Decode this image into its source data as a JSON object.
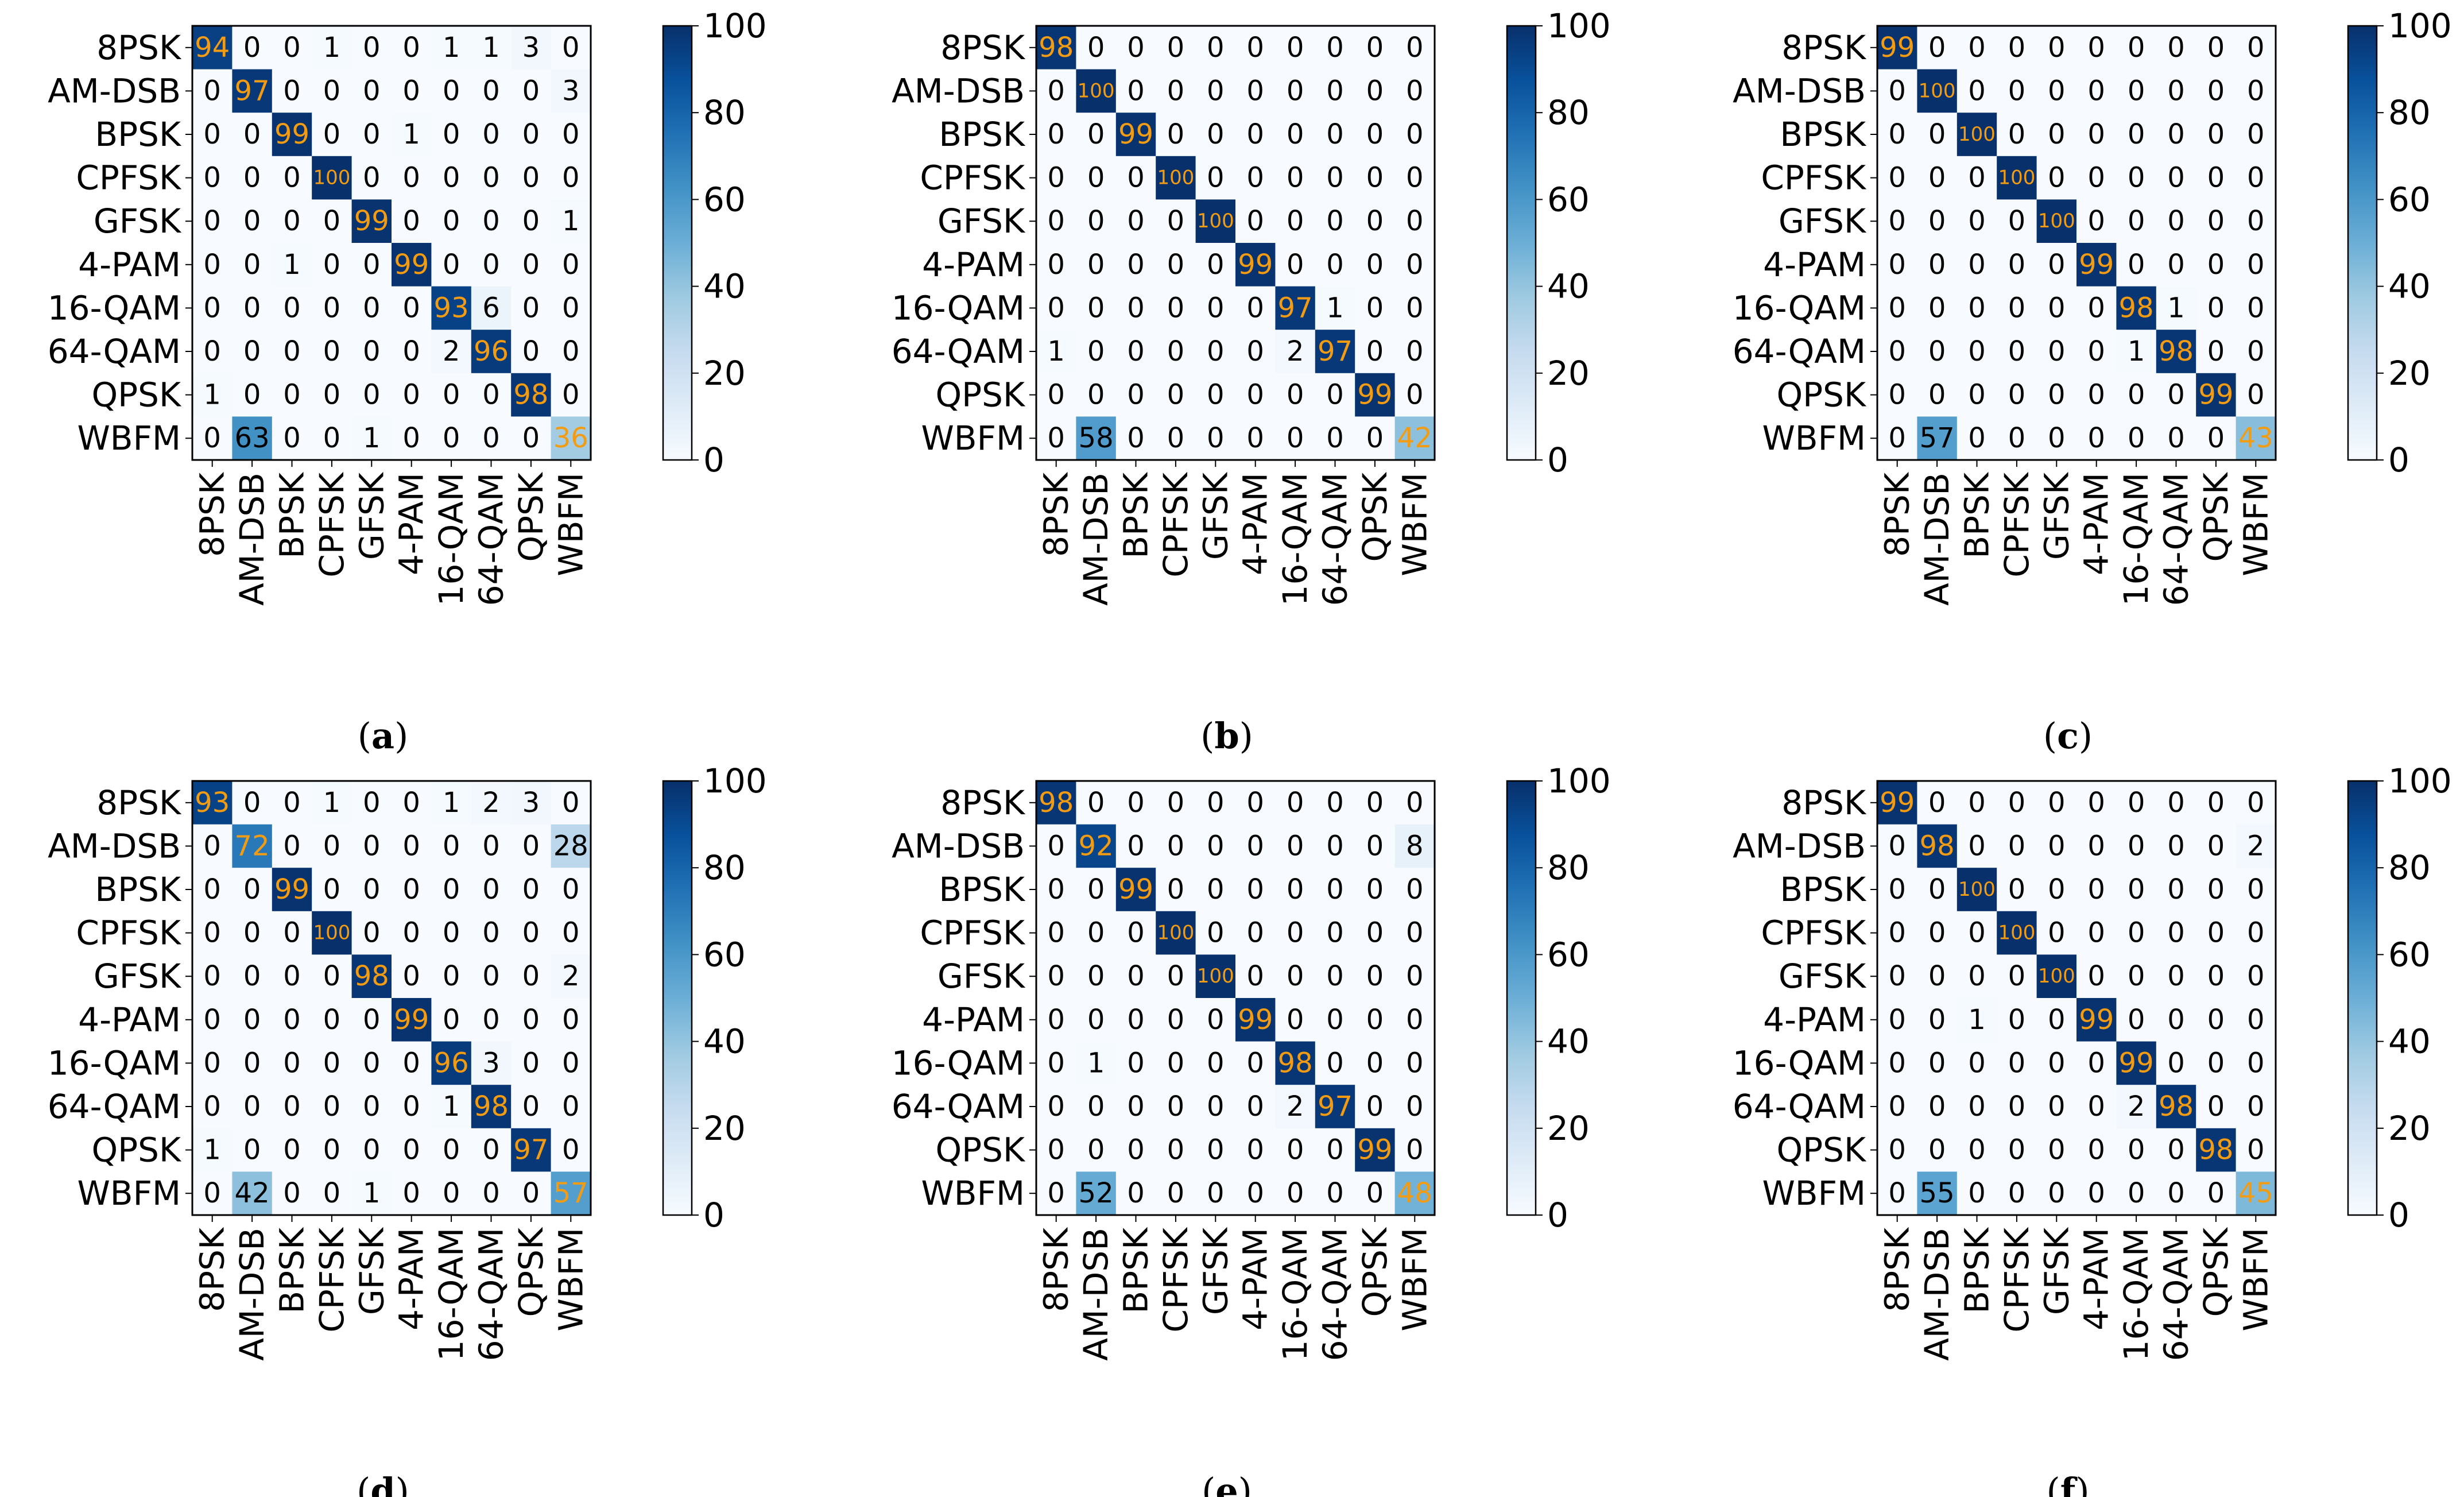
{
  "figure": {
    "classes": [
      "8PSK",
      "AM-DSB",
      "BPSK",
      "CPFSK",
      "GFSK",
      "4-PAM",
      "16-QAM",
      "64-QAM",
      "QPSK",
      "WBFM"
    ],
    "colorbar_ticks": [
      "100",
      "80",
      "60",
      "40",
      "20",
      "0"
    ],
    "colors": {
      "cell_high": "#08306b",
      "cell_low": "#f7fbff",
      "diag_text": "#f39c12",
      "offdiag_text": "#000000"
    }
  },
  "chart_data": [
    {
      "type": "heatmap",
      "panel": "a",
      "caption_letter": "a",
      "xlabels": [
        "8PSK",
        "AM-DSB",
        "BPSK",
        "CPFSK",
        "GFSK",
        "4-PAM",
        "16-QAM",
        "64-QAM",
        "QPSK",
        "WBFM"
      ],
      "ylabels": [
        "8PSK",
        "AM-DSB",
        "BPSK",
        "CPFSK",
        "GFSK",
        "4-PAM",
        "16-QAM",
        "64-QAM",
        "QPSK",
        "WBFM"
      ],
      "vmin": 0,
      "vmax": 100,
      "matrix": [
        [
          94,
          0,
          0,
          1,
          0,
          0,
          1,
          1,
          3,
          0
        ],
        [
          0,
          97,
          0,
          0,
          0,
          0,
          0,
          0,
          0,
          3
        ],
        [
          0,
          0,
          99,
          0,
          0,
          1,
          0,
          0,
          0,
          0
        ],
        [
          0,
          0,
          0,
          100,
          0,
          0,
          0,
          0,
          0,
          0
        ],
        [
          0,
          0,
          0,
          0,
          99,
          0,
          0,
          0,
          0,
          1
        ],
        [
          0,
          0,
          1,
          0,
          0,
          99,
          0,
          0,
          0,
          0
        ],
        [
          0,
          0,
          0,
          0,
          0,
          0,
          93,
          6,
          0,
          0
        ],
        [
          0,
          0,
          0,
          0,
          0,
          0,
          2,
          96,
          0,
          0
        ],
        [
          1,
          0,
          0,
          0,
          0,
          0,
          0,
          0,
          98,
          0
        ],
        [
          0,
          63,
          0,
          0,
          1,
          0,
          0,
          0,
          0,
          36
        ]
      ]
    },
    {
      "type": "heatmap",
      "panel": "b",
      "caption_letter": "b",
      "xlabels": [
        "8PSK",
        "AM-DSB",
        "BPSK",
        "CPFSK",
        "GFSK",
        "4-PAM",
        "16-QAM",
        "64-QAM",
        "QPSK",
        "WBFM"
      ],
      "ylabels": [
        "8PSK",
        "AM-DSB",
        "BPSK",
        "CPFSK",
        "GFSK",
        "4-PAM",
        "16-QAM",
        "64-QAM",
        "QPSK",
        "WBFM"
      ],
      "vmin": 0,
      "vmax": 100,
      "matrix": [
        [
          98,
          0,
          0,
          0,
          0,
          0,
          0,
          0,
          0,
          0
        ],
        [
          0,
          100,
          0,
          0,
          0,
          0,
          0,
          0,
          0,
          0
        ],
        [
          0,
          0,
          99,
          0,
          0,
          0,
          0,
          0,
          0,
          0
        ],
        [
          0,
          0,
          0,
          100,
          0,
          0,
          0,
          0,
          0,
          0
        ],
        [
          0,
          0,
          0,
          0,
          100,
          0,
          0,
          0,
          0,
          0
        ],
        [
          0,
          0,
          0,
          0,
          0,
          99,
          0,
          0,
          0,
          0
        ],
        [
          0,
          0,
          0,
          0,
          0,
          0,
          97,
          1,
          0,
          0
        ],
        [
          1,
          0,
          0,
          0,
          0,
          0,
          2,
          97,
          0,
          0
        ],
        [
          0,
          0,
          0,
          0,
          0,
          0,
          0,
          0,
          99,
          0
        ],
        [
          0,
          58,
          0,
          0,
          0,
          0,
          0,
          0,
          0,
          42
        ]
      ]
    },
    {
      "type": "heatmap",
      "panel": "c",
      "caption_letter": "c",
      "xlabels": [
        "8PSK",
        "AM-DSB",
        "BPSK",
        "CPFSK",
        "GFSK",
        "4-PAM",
        "16-QAM",
        "64-QAM",
        "QPSK",
        "WBFM"
      ],
      "ylabels": [
        "8PSK",
        "AM-DSB",
        "BPSK",
        "CPFSK",
        "GFSK",
        "4-PAM",
        "16-QAM",
        "64-QAM",
        "QPSK",
        "WBFM"
      ],
      "vmin": 0,
      "vmax": 100,
      "matrix": [
        [
          99,
          0,
          0,
          0,
          0,
          0,
          0,
          0,
          0,
          0
        ],
        [
          0,
          100,
          0,
          0,
          0,
          0,
          0,
          0,
          0,
          0
        ],
        [
          0,
          0,
          100,
          0,
          0,
          0,
          0,
          0,
          0,
          0
        ],
        [
          0,
          0,
          0,
          100,
          0,
          0,
          0,
          0,
          0,
          0
        ],
        [
          0,
          0,
          0,
          0,
          100,
          0,
          0,
          0,
          0,
          0
        ],
        [
          0,
          0,
          0,
          0,
          0,
          99,
          0,
          0,
          0,
          0
        ],
        [
          0,
          0,
          0,
          0,
          0,
          0,
          98,
          1,
          0,
          0
        ],
        [
          0,
          0,
          0,
          0,
          0,
          0,
          1,
          98,
          0,
          0
        ],
        [
          0,
          0,
          0,
          0,
          0,
          0,
          0,
          0,
          99,
          0
        ],
        [
          0,
          57,
          0,
          0,
          0,
          0,
          0,
          0,
          0,
          43
        ]
      ]
    },
    {
      "type": "heatmap",
      "panel": "d",
      "caption_letter": "d",
      "xlabels": [
        "8PSK",
        "AM-DSB",
        "BPSK",
        "CPFSK",
        "GFSK",
        "4-PAM",
        "16-QAM",
        "64-QAM",
        "QPSK",
        "WBFM"
      ],
      "ylabels": [
        "8PSK",
        "AM-DSB",
        "BPSK",
        "CPFSK",
        "GFSK",
        "4-PAM",
        "16-QAM",
        "64-QAM",
        "QPSK",
        "WBFM"
      ],
      "vmin": 0,
      "vmax": 100,
      "matrix": [
        [
          93,
          0,
          0,
          1,
          0,
          0,
          1,
          2,
          3,
          0
        ],
        [
          0,
          72,
          0,
          0,
          0,
          0,
          0,
          0,
          0,
          28
        ],
        [
          0,
          0,
          99,
          0,
          0,
          0,
          0,
          0,
          0,
          0
        ],
        [
          0,
          0,
          0,
          100,
          0,
          0,
          0,
          0,
          0,
          0
        ],
        [
          0,
          0,
          0,
          0,
          98,
          0,
          0,
          0,
          0,
          2
        ],
        [
          0,
          0,
          0,
          0,
          0,
          99,
          0,
          0,
          0,
          0
        ],
        [
          0,
          0,
          0,
          0,
          0,
          0,
          96,
          3,
          0,
          0
        ],
        [
          0,
          0,
          0,
          0,
          0,
          0,
          1,
          98,
          0,
          0
        ],
        [
          1,
          0,
          0,
          0,
          0,
          0,
          0,
          0,
          97,
          0
        ],
        [
          0,
          42,
          0,
          0,
          1,
          0,
          0,
          0,
          0,
          57
        ]
      ]
    },
    {
      "type": "heatmap",
      "panel": "e",
      "caption_letter": "e",
      "xlabels": [
        "8PSK",
        "AM-DSB",
        "BPSK",
        "CPFSK",
        "GFSK",
        "4-PAM",
        "16-QAM",
        "64-QAM",
        "QPSK",
        "WBFM"
      ],
      "ylabels": [
        "8PSK",
        "AM-DSB",
        "BPSK",
        "CPFSK",
        "GFSK",
        "4-PAM",
        "16-QAM",
        "64-QAM",
        "QPSK",
        "WBFM"
      ],
      "vmin": 0,
      "vmax": 100,
      "matrix": [
        [
          98,
          0,
          0,
          0,
          0,
          0,
          0,
          0,
          0,
          0
        ],
        [
          0,
          92,
          0,
          0,
          0,
          0,
          0,
          0,
          0,
          8
        ],
        [
          0,
          0,
          99,
          0,
          0,
          0,
          0,
          0,
          0,
          0
        ],
        [
          0,
          0,
          0,
          100,
          0,
          0,
          0,
          0,
          0,
          0
        ],
        [
          0,
          0,
          0,
          0,
          100,
          0,
          0,
          0,
          0,
          0
        ],
        [
          0,
          0,
          0,
          0,
          0,
          99,
          0,
          0,
          0,
          0
        ],
        [
          0,
          1,
          0,
          0,
          0,
          0,
          98,
          0,
          0,
          0
        ],
        [
          0,
          0,
          0,
          0,
          0,
          0,
          2,
          97,
          0,
          0
        ],
        [
          0,
          0,
          0,
          0,
          0,
          0,
          0,
          0,
          99,
          0
        ],
        [
          0,
          52,
          0,
          0,
          0,
          0,
          0,
          0,
          0,
          48
        ]
      ]
    },
    {
      "type": "heatmap",
      "panel": "f",
      "caption_letter": "f",
      "xlabels": [
        "8PSK",
        "AM-DSB",
        "BPSK",
        "CPFSK",
        "GFSK",
        "4-PAM",
        "16-QAM",
        "64-QAM",
        "QPSK",
        "WBFM"
      ],
      "ylabels": [
        "8PSK",
        "AM-DSB",
        "BPSK",
        "CPFSK",
        "GFSK",
        "4-PAM",
        "16-QAM",
        "64-QAM",
        "QPSK",
        "WBFM"
      ],
      "vmin": 0,
      "vmax": 100,
      "matrix": [
        [
          99,
          0,
          0,
          0,
          0,
          0,
          0,
          0,
          0,
          0
        ],
        [
          0,
          98,
          0,
          0,
          0,
          0,
          0,
          0,
          0,
          2
        ],
        [
          0,
          0,
          100,
          0,
          0,
          0,
          0,
          0,
          0,
          0
        ],
        [
          0,
          0,
          0,
          100,
          0,
          0,
          0,
          0,
          0,
          0
        ],
        [
          0,
          0,
          0,
          0,
          100,
          0,
          0,
          0,
          0,
          0
        ],
        [
          0,
          0,
          1,
          0,
          0,
          99,
          0,
          0,
          0,
          0
        ],
        [
          0,
          0,
          0,
          0,
          0,
          0,
          99,
          0,
          0,
          0
        ],
        [
          0,
          0,
          0,
          0,
          0,
          0,
          2,
          98,
          0,
          0
        ],
        [
          0,
          0,
          0,
          0,
          0,
          0,
          0,
          0,
          98,
          0
        ],
        [
          0,
          55,
          0,
          0,
          0,
          0,
          0,
          0,
          0,
          45
        ]
      ]
    }
  ]
}
